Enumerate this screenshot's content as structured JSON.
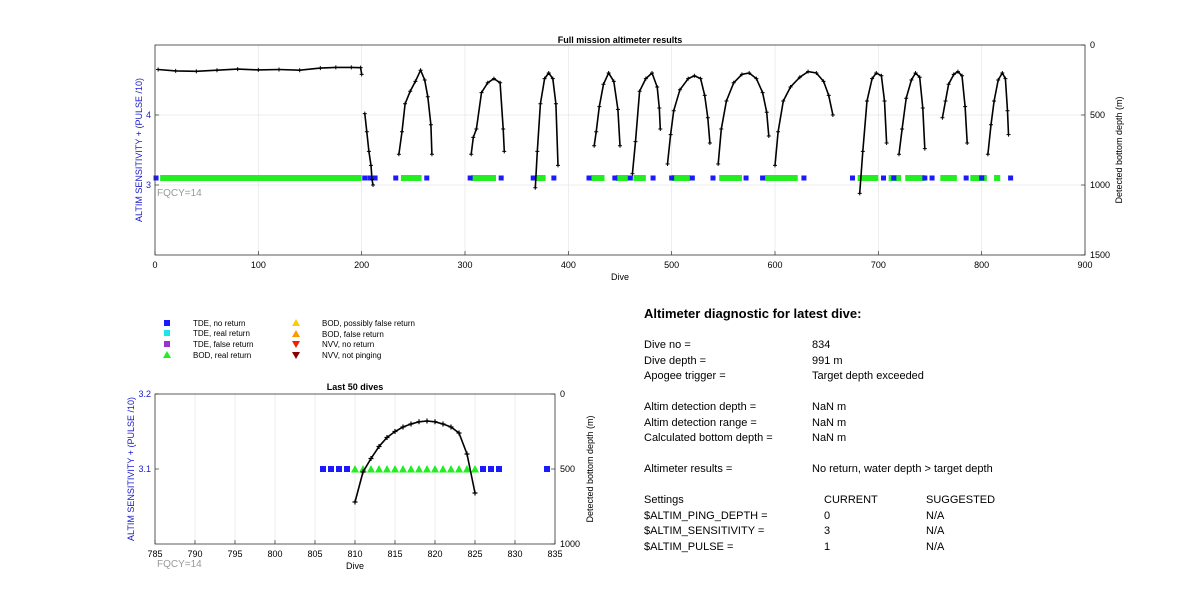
{
  "colors": {
    "tde_no_return": "#1a1aff",
    "tde_real_return": "#19e6e6",
    "tde_false_return": "#9933cc",
    "bod_real_return": "#22ee22",
    "bod_possibly_false": "#ffcc00",
    "bod_false": "#ff9900",
    "nvv_no_return": "#ee2200",
    "nvv_not_pinging": "#880000",
    "left_axis": "#1a1acc",
    "fqcy_text": "#999999"
  },
  "chart_data": [
    {
      "type": "scatter",
      "title": "Full mission altimeter results",
      "xlabel": "Dive",
      "ylabel": "ALTIM SENSITIVITY + (PULSE /10)",
      "y2label": "Detected bottom depth (m)",
      "xlim": [
        0,
        900
      ],
      "ylim": [
        2,
        5
      ],
      "y2lim": [
        1500,
        0
      ],
      "xticks": [
        "0",
        "100",
        "200",
        "300",
        "400",
        "500",
        "600",
        "700",
        "800",
        "900"
      ],
      "yticks": [
        "3",
        "4"
      ],
      "y2ticks": [
        "0",
        "500",
        "1000",
        "1500"
      ],
      "annotation": "FQCY=14",
      "tde_no_return_dives": [
        1,
        203,
        208,
        213,
        233,
        263,
        305,
        335,
        366,
        386,
        420,
        445,
        460,
        482,
        500,
        520,
        540,
        572,
        588,
        628,
        675,
        705,
        715,
        745,
        752,
        785,
        800,
        828
      ],
      "bod_real_return_segments": [
        [
          5,
          200
        ],
        [
          238,
          258
        ],
        [
          306,
          330
        ],
        [
          368,
          378
        ],
        [
          422,
          435
        ],
        [
          446,
          458
        ],
        [
          463,
          475
        ],
        [
          500,
          518
        ],
        [
          546,
          568
        ],
        [
          590,
          622
        ],
        [
          680,
          700
        ],
        [
          710,
          722
        ],
        [
          726,
          745
        ],
        [
          760,
          776
        ],
        [
          789,
          805
        ],
        [
          812,
          818
        ]
      ],
      "settings_level": 3.1,
      "depth_series": [
        [
          [
            3,
            175
          ],
          [
            20,
            185
          ],
          [
            40,
            188
          ],
          [
            60,
            180
          ],
          [
            80,
            172
          ],
          [
            100,
            178
          ],
          [
            120,
            175
          ],
          [
            140,
            180
          ],
          [
            160,
            165
          ],
          [
            175,
            160
          ],
          [
            190,
            160
          ],
          [
            199,
            162
          ],
          [
            200,
            210
          ]
        ],
        [
          [
            203,
            490
          ],
          [
            205,
            620
          ],
          [
            207,
            760
          ],
          [
            209,
            860
          ],
          [
            210,
            960
          ],
          [
            211,
            1000
          ]
        ],
        [
          [
            236,
            780
          ],
          [
            239,
            620
          ],
          [
            242,
            420
          ],
          [
            247,
            330
          ],
          [
            252,
            260
          ],
          [
            257,
            180
          ],
          [
            261,
            250
          ],
          [
            264,
            370
          ],
          [
            267,
            570
          ],
          [
            268,
            780
          ]
        ],
        [
          [
            306,
            780
          ],
          [
            308,
            660
          ],
          [
            311,
            600
          ],
          [
            316,
            340
          ],
          [
            322,
            270
          ],
          [
            328,
            240
          ],
          [
            334,
            270
          ],
          [
            337,
            600
          ],
          [
            338,
            760
          ]
        ],
        [
          [
            368,
            1020
          ],
          [
            370,
            760
          ],
          [
            373,
            420
          ],
          [
            377,
            240
          ],
          [
            381,
            200
          ],
          [
            385,
            240
          ],
          [
            388,
            420
          ],
          [
            390,
            860
          ]
        ],
        [
          [
            425,
            720
          ],
          [
            427,
            620
          ],
          [
            430,
            440
          ],
          [
            434,
            280
          ],
          [
            439,
            200
          ],
          [
            444,
            260
          ],
          [
            448,
            460
          ],
          [
            450,
            720
          ]
        ],
        [
          [
            462,
            920
          ],
          [
            465,
            690
          ],
          [
            469,
            330
          ],
          [
            475,
            240
          ],
          [
            481,
            200
          ],
          [
            486,
            300
          ],
          [
            488,
            450
          ],
          [
            489,
            600
          ]
        ],
        [
          [
            496,
            850
          ],
          [
            499,
            640
          ],
          [
            502,
            470
          ],
          [
            508,
            320
          ],
          [
            516,
            240
          ],
          [
            522,
            220
          ],
          [
            528,
            240
          ],
          [
            532,
            360
          ],
          [
            535,
            520
          ],
          [
            537,
            700
          ]
        ],
        [
          [
            545,
            850
          ],
          [
            548,
            600
          ],
          [
            553,
            400
          ],
          [
            560,
            270
          ],
          [
            568,
            210
          ],
          [
            575,
            200
          ],
          [
            582,
            240
          ],
          [
            588,
            340
          ],
          [
            592,
            480
          ],
          [
            594,
            650
          ]
        ],
        [
          [
            600,
            860
          ],
          [
            603,
            620
          ],
          [
            608,
            400
          ],
          [
            615,
            300
          ],
          [
            624,
            230
          ],
          [
            632,
            190
          ],
          [
            640,
            200
          ],
          [
            647,
            260
          ],
          [
            652,
            360
          ],
          [
            656,
            500
          ]
        ],
        [
          [
            682,
            1060
          ],
          [
            685,
            760
          ],
          [
            689,
            400
          ],
          [
            694,
            240
          ],
          [
            698,
            200
          ],
          [
            703,
            220
          ],
          [
            706,
            400
          ],
          [
            708,
            700
          ]
        ],
        [
          [
            720,
            780
          ],
          [
            723,
            600
          ],
          [
            727,
            380
          ],
          [
            732,
            250
          ],
          [
            736,
            200
          ],
          [
            740,
            230
          ],
          [
            743,
            450
          ],
          [
            745,
            740
          ]
        ],
        [
          [
            762,
            520
          ],
          [
            765,
            400
          ],
          [
            768,
            280
          ],
          [
            773,
            210
          ],
          [
            777,
            190
          ],
          [
            781,
            220
          ],
          [
            784,
            440
          ],
          [
            786,
            700
          ]
        ],
        [
          [
            806,
            780
          ],
          [
            809,
            570
          ],
          [
            812,
            400
          ],
          [
            816,
            250
          ],
          [
            820,
            200
          ],
          [
            823,
            240
          ],
          [
            825,
            470
          ],
          [
            826,
            640
          ]
        ]
      ]
    },
    {
      "type": "scatter",
      "title": "Last 50 dives",
      "xlabel": "Dive",
      "ylabel": "ALTIM SENSITIVITY + (PULSE /10)",
      "y2label": "Detected bottom depth (m)",
      "xlim": [
        785,
        835
      ],
      "ylim": [
        3,
        3.2
      ],
      "y2lim": [
        1000,
        0
      ],
      "xticks": [
        "785",
        "790",
        "795",
        "800",
        "805",
        "810",
        "815",
        "820",
        "825",
        "830",
        "835"
      ],
      "yticks": [
        "3.1",
        "3.2"
      ],
      "y2ticks": [
        "0",
        "500",
        "1000"
      ],
      "annotation": "FQCY=14",
      "tde_no_return_dives": [
        806,
        807,
        808,
        809,
        826,
        827,
        828,
        834
      ],
      "bod_real_return_dives": [
        810,
        811,
        812,
        813,
        814,
        815,
        816,
        817,
        818,
        819,
        820,
        821,
        822,
        823,
        824,
        825
      ],
      "settings_level": 3.1,
      "depth_series": [
        [
          810,
          720
        ],
        [
          811,
          520
        ],
        [
          812,
          430
        ],
        [
          813,
          350
        ],
        [
          814,
          290
        ],
        [
          815,
          250
        ],
        [
          816,
          220
        ],
        [
          817,
          200
        ],
        [
          818,
          185
        ],
        [
          819,
          180
        ],
        [
          820,
          185
        ],
        [
          821,
          200
        ],
        [
          822,
          220
        ],
        [
          823,
          260
        ],
        [
          824,
          400
        ],
        [
          825,
          660
        ]
      ]
    }
  ],
  "legend": [
    {
      "label": "TDE, no return",
      "marker": "square",
      "color": "#1a1aff"
    },
    {
      "label": "TDE, real return",
      "marker": "square",
      "color": "#19e6e6"
    },
    {
      "label": "TDE, false return",
      "marker": "square",
      "color": "#9933cc"
    },
    {
      "label": "BOD, real return",
      "marker": "triangle-up",
      "color": "#22ee22"
    },
    {
      "label": "BOD, possibly false return",
      "marker": "triangle-up",
      "color": "#ffcc00"
    },
    {
      "label": "BOD, false return",
      "marker": "triangle-up",
      "color": "#ff9900"
    },
    {
      "label": "NVV, no return",
      "marker": "triangle-down",
      "color": "#ee2200"
    },
    {
      "label": "NVV, not pinging",
      "marker": "triangle-down",
      "color": "#880000"
    }
  ],
  "diagnostic": {
    "title": "Altimeter diagnostic for latest dive:",
    "dive_no_label": "Dive no =",
    "dive_no": "834",
    "dive_depth_label": "Dive depth =",
    "dive_depth": "991 m",
    "apogee_label": "Apogee trigger =",
    "apogee": "Target depth exceeded",
    "det_depth_label": "Altim detection depth =",
    "det_depth": "NaN m",
    "det_range_label": "Altim detection range =",
    "det_range": "NaN m",
    "calc_depth_label": "Calculated bottom depth =",
    "calc_depth": "NaN m",
    "results_label": "Altimeter results =",
    "results": "No return, water depth > target depth",
    "settings_label": "Settings",
    "current_label": "CURRENT",
    "suggested_label": "SUGGESTED",
    "settings": [
      {
        "name": "$ALTIM_PING_DEPTH =",
        "current": "0",
        "suggested": "N/A"
      },
      {
        "name": "$ALTIM_SENSITIVITY =",
        "current": "3",
        "suggested": "N/A"
      },
      {
        "name": "$ALTIM_PULSE =",
        "current": "1",
        "suggested": "N/A"
      }
    ]
  }
}
